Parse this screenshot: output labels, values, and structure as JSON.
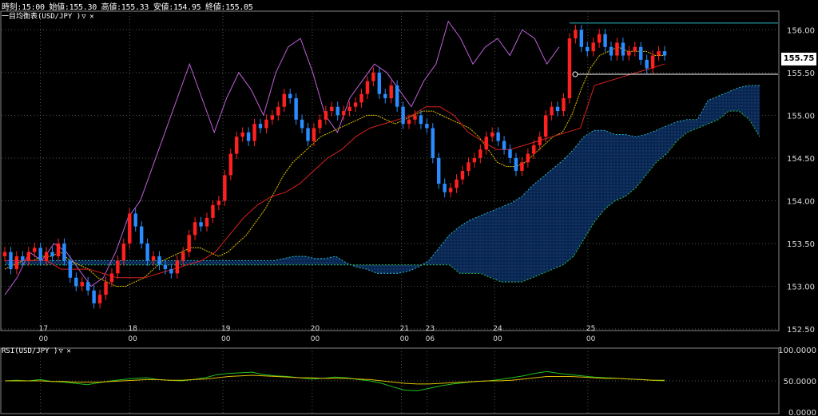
{
  "header": {
    "time_label": "時刻:",
    "time": "15:00",
    "open_label": "始値:",
    "open": "155.30",
    "high_label": "高値:",
    "high": "155.33",
    "low_label": "安値:",
    "low": "154.95",
    "close_label": "終値:",
    "close": "155.05"
  },
  "main_indicator_label": "一目均衡表(USD/JPY )",
  "sub_indicator_label": "RSI(USD/JPY )",
  "current_price": "155.75",
  "colors": {
    "up": "#ff2020",
    "down": "#2a8cff",
    "tenkan": "#e0c000",
    "kijun": "#d82020",
    "chikou": "#c060d8",
    "cloud_fill": "#0a2a5a",
    "cloud_edge_a": "#28b8c8",
    "cloud_edge_b": "#28c050",
    "rsi": "#20c020",
    "rsi_signal": "#e0c000",
    "grid": "#555555"
  },
  "chart_data": [
    {
      "type": "candlestick",
      "title": "",
      "ylim": [
        152.5,
        156.2
      ],
      "y_ticks": [
        "156.00",
        "155.50",
        "155.00",
        "154.50",
        "154.00",
        "153.50",
        "153.00",
        "152.50"
      ],
      "x_ticks": [
        {
          "date": "17",
          "time": "00"
        },
        {
          "date": "18",
          "time": "00"
        },
        {
          "date": "19",
          "time": "00"
        },
        {
          "date": "20",
          "time": "00"
        },
        {
          "date": "21",
          "time": "00"
        },
        {
          "date": "23",
          "time": "06"
        },
        {
          "date": "24",
          "time": "00"
        },
        {
          "date": "25",
          "time": "00"
        }
      ],
      "close_series": [
        153.4,
        153.2,
        153.35,
        153.3,
        153.4,
        153.45,
        153.3,
        153.4,
        153.35,
        153.5,
        153.3,
        153.1,
        153.0,
        153.05,
        152.95,
        152.8,
        152.9,
        153.05,
        153.15,
        153.3,
        153.5,
        153.85,
        153.7,
        153.5,
        153.3,
        153.35,
        153.25,
        153.2,
        153.15,
        153.3,
        153.4,
        153.6,
        153.75,
        153.7,
        153.8,
        153.95,
        154.0,
        154.3,
        154.55,
        154.75,
        154.8,
        154.7,
        154.9,
        154.85,
        154.95,
        155.0,
        155.1,
        155.25,
        155.2,
        154.95,
        154.85,
        154.7,
        154.85,
        154.95,
        155.05,
        155.1,
        155.0,
        155.05,
        155.1,
        155.15,
        155.25,
        155.4,
        155.5,
        155.25,
        155.2,
        155.35,
        155.1,
        154.9,
        154.95,
        155.0,
        154.9,
        154.85,
        154.5,
        154.2,
        154.1,
        154.15,
        154.25,
        154.35,
        154.45,
        154.5,
        154.6,
        154.75,
        154.8,
        154.7,
        154.6,
        154.5,
        154.35,
        154.45,
        154.55,
        154.65,
        154.75,
        155.0,
        155.1,
        155.05,
        155.2,
        155.9,
        156.0,
        155.8,
        155.75,
        155.85,
        155.95,
        155.8,
        155.7,
        155.85,
        155.7,
        155.75,
        155.8,
        155.65,
        155.55,
        155.7,
        155.75,
        155.7
      ],
      "tenkan_series": [
        153.2,
        153.25,
        153.3,
        153.3,
        153.35,
        153.35,
        153.4,
        153.3,
        153.25,
        153.2,
        153.1,
        153.05,
        153.0,
        153.0,
        153.05,
        153.1,
        153.2,
        153.3,
        153.35,
        153.4,
        153.45,
        153.45,
        153.4,
        153.35,
        153.4,
        153.5,
        153.6,
        153.75,
        153.9,
        154.1,
        154.3,
        154.45,
        154.55,
        154.65,
        154.75,
        154.8,
        154.85,
        154.9,
        154.95,
        155.0,
        155.0,
        154.95,
        154.9,
        154.95,
        155.0,
        155.05,
        155.05,
        155.0,
        154.95,
        154.9,
        154.85,
        154.75,
        154.6,
        154.45,
        154.4,
        154.4,
        154.45,
        154.55,
        154.65,
        154.75,
        154.8,
        155.0,
        155.3,
        155.55,
        155.7,
        155.75,
        155.8,
        155.75,
        155.75,
        155.75,
        155.7,
        155.7
      ],
      "kijun_series": [
        153.3,
        153.3,
        153.3,
        153.3,
        153.2,
        153.2,
        153.2,
        153.15,
        153.1,
        153.1,
        153.1,
        153.15,
        153.2,
        153.25,
        153.3,
        153.4,
        153.6,
        153.8,
        153.95,
        154.05,
        154.1,
        154.2,
        154.35,
        154.5,
        154.6,
        154.75,
        154.85,
        154.9,
        154.95,
        155.0,
        155.1,
        155.1,
        155.0,
        154.8,
        154.7,
        154.6,
        154.6,
        154.65,
        154.7,
        154.75,
        154.8,
        154.85,
        155.35,
        155.4,
        155.45,
        155.5,
        155.55,
        155.6
      ],
      "chikou_series": [
        152.9,
        153.1,
        153.4,
        153.3,
        153.5,
        153.4,
        153.2,
        153.0,
        153.1,
        153.4,
        153.8,
        154.0,
        154.4,
        154.8,
        155.2,
        155.6,
        155.2,
        154.8,
        155.2,
        155.5,
        155.3,
        155.0,
        155.5,
        155.8,
        155.9,
        155.5,
        155.0,
        154.8,
        155.2,
        155.4,
        155.6,
        155.5,
        155.3,
        155.1,
        155.4,
        155.6,
        156.1,
        155.9,
        155.6,
        155.8,
        155.9,
        155.7,
        156.0,
        155.9,
        155.6,
        155.8
      ]
    },
    {
      "type": "line",
      "title": "",
      "ylim": [
        0,
        100
      ],
      "y_ticks": [
        "100.0000",
        "50.0000",
        "0.0000"
      ],
      "series": [
        {
          "values": [
            50,
            51,
            50,
            52,
            49,
            48,
            46,
            44,
            47,
            50,
            52,
            54,
            55,
            52,
            51,
            50,
            52,
            55,
            60,
            62,
            63,
            64,
            60,
            58,
            57,
            55,
            53,
            54,
            56,
            55,
            52,
            50,
            46,
            40,
            35,
            34,
            38,
            42,
            45,
            47,
            49,
            50,
            52,
            55,
            58,
            62,
            65,
            62,
            60,
            58,
            56,
            55,
            54,
            53,
            52,
            51,
            50
          ]
        },
        {
          "values": [
            50,
            50,
            50,
            50,
            49,
            49,
            48,
            48,
            48,
            49,
            50,
            51,
            52,
            52,
            51,
            51,
            52,
            53,
            55,
            57,
            58,
            59,
            58,
            57,
            56,
            55,
            55,
            54,
            54,
            54,
            53,
            52,
            50,
            48,
            46,
            45,
            45,
            46,
            47,
            48,
            49,
            50,
            50,
            51,
            53,
            55,
            57,
            57,
            57,
            56,
            55,
            54,
            54,
            53,
            52,
            51,
            51
          ]
        }
      ]
    }
  ]
}
